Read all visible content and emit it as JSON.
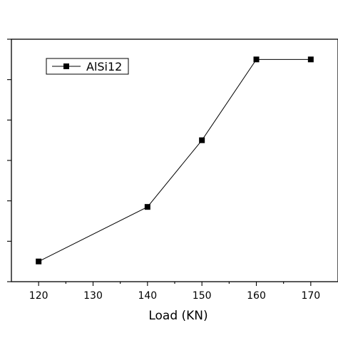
{
  "chart_data": {
    "type": "line",
    "xlabel": "Load (KN)",
    "ylabel": "",
    "xlim": [
      115,
      175
    ],
    "ylim": [
      0,
      6
    ],
    "x_ticks": [
      120,
      130,
      140,
      150,
      160,
      170
    ],
    "y_ticks": [
      0,
      1,
      2,
      3,
      4,
      5,
      6
    ],
    "legend_position": "top-left",
    "series": [
      {
        "name": "AlSi12",
        "x": [
          120,
          140,
          150,
          160,
          170
        ],
        "y": [
          0.5,
          1.85,
          3.5,
          5.5,
          5.5
        ]
      }
    ]
  }
}
